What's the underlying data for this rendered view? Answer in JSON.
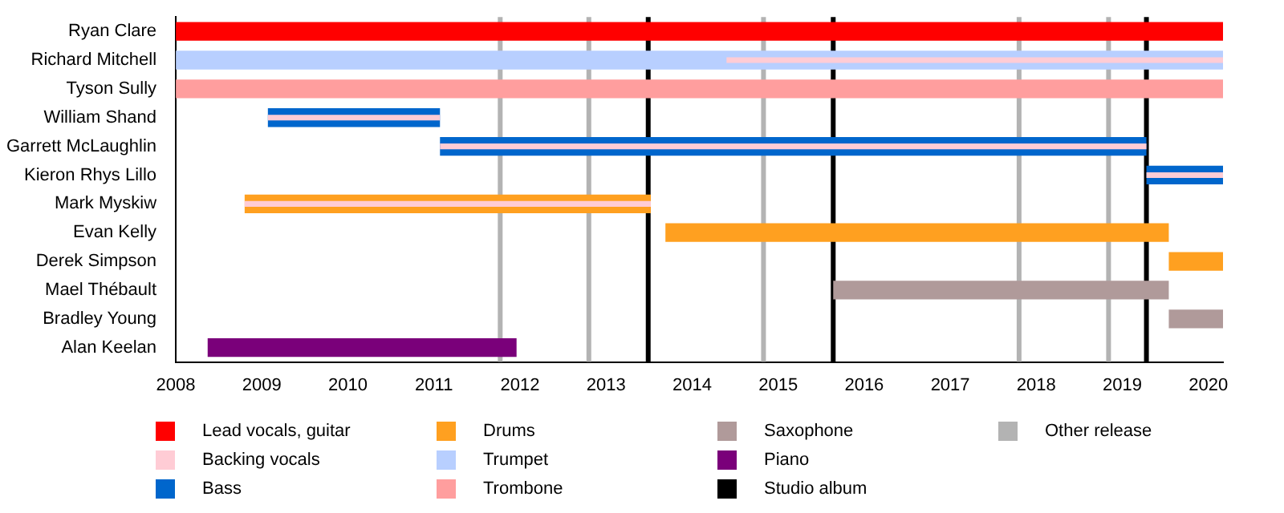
{
  "chart_data": {
    "type": "bar",
    "orientation": "horizontal",
    "categories": [
      "Ryan Clare",
      "Richard Mitchell",
      "Tyson Sully",
      "William Shand",
      "Garrett McLaughlin",
      "Kieron Rhys Lillo",
      "Mark Myskiw",
      "Evan Kelly",
      "Derek Simpson",
      "Mael Thébault",
      "Bradley Young",
      "Alan Keelan"
    ],
    "series": [
      {
        "name": "Lead vocals, guitar",
        "color": "#ff0000",
        "base": [
          2008,
          null,
          null,
          null,
          null,
          null,
          null,
          null,
          null,
          null,
          null,
          null
        ],
        "values": [
          12.17,
          null,
          null,
          null,
          null,
          null,
          null,
          null,
          null,
          null,
          null,
          null
        ]
      },
      {
        "name": "Backing vocals",
        "color": "#ffccd5",
        "base": [
          null,
          2014.4,
          null,
          2009.07,
          2011.07,
          2019.28,
          2008.8,
          null,
          null,
          null,
          null,
          null
        ],
        "values": [
          null,
          5.77,
          null,
          2,
          8.21,
          0.89,
          4.72,
          null,
          null,
          null,
          null,
          null
        ]
      },
      {
        "name": "Bass",
        "color": "#0066cc",
        "base": [
          null,
          null,
          null,
          2009.07,
          2011.07,
          2019.28,
          null,
          null,
          null,
          null,
          null,
          null
        ],
        "values": [
          null,
          null,
          null,
          2,
          8.21,
          0.89,
          null,
          null,
          null,
          null,
          null,
          null
        ]
      },
      {
        "name": "Drums",
        "color": "#ffa020",
        "base": [
          null,
          null,
          null,
          null,
          null,
          null,
          2008.8,
          2013.69,
          2019.54,
          null,
          null,
          null
        ],
        "values": [
          null,
          null,
          null,
          null,
          null,
          null,
          4.72,
          5.85,
          0.63,
          null,
          null,
          null
        ]
      },
      {
        "name": "Trumpet",
        "color": "#b8cfff",
        "base": [
          null,
          2008,
          null,
          null,
          null,
          null,
          null,
          null,
          null,
          null,
          null,
          null
        ],
        "values": [
          null,
          12.17,
          null,
          null,
          null,
          null,
          null,
          null,
          null,
          null,
          null,
          null
        ]
      },
      {
        "name": "Trombone",
        "color": "#ff9e9e",
        "base": [
          null,
          null,
          2008,
          null,
          null,
          null,
          null,
          null,
          null,
          null,
          null,
          null
        ],
        "values": [
          null,
          null,
          12.17,
          null,
          null,
          null,
          null,
          null,
          null,
          null,
          null,
          null
        ]
      },
      {
        "name": "Saxophone",
        "color": "#b09a9a",
        "base": [
          null,
          null,
          null,
          null,
          null,
          null,
          null,
          null,
          null,
          2015.64,
          2019.54,
          null
        ],
        "values": [
          null,
          null,
          null,
          null,
          null,
          null,
          null,
          null,
          null,
          3.9,
          0.63,
          null
        ]
      },
      {
        "name": "Piano",
        "color": "#7a007a",
        "base": [
          null,
          null,
          null,
          null,
          null,
          null,
          null,
          null,
          null,
          null,
          null,
          2008.37
        ],
        "values": [
          null,
          null,
          null,
          null,
          null,
          null,
          null,
          null,
          null,
          null,
          null,
          3.59
        ]
      }
    ],
    "xlim": [
      2008,
      2020.17
    ],
    "xticks": [
      2008,
      2009,
      2010,
      2011,
      2012,
      2013,
      2014,
      2015,
      2016,
      2017,
      2018,
      2019,
      2020
    ],
    "ref_lines": [
      {
        "axis": "x",
        "value": 2013.49,
        "label": "Studio album",
        "color": "#000000"
      },
      {
        "axis": "x",
        "value": 2015.64,
        "color": "#000000"
      },
      {
        "axis": "x",
        "value": 2019.28,
        "color": "#000000"
      },
      {
        "axis": "x",
        "value": 2011.77,
        "label": "Other release",
        "color": "#b3b3b3"
      },
      {
        "axis": "x",
        "value": 2012.8,
        "color": "#b3b3b3"
      },
      {
        "axis": "x",
        "value": 2014.83,
        "color": "#b3b3b3"
      },
      {
        "axis": "x",
        "value": 2017.8,
        "color": "#b3b3b3"
      },
      {
        "axis": "x",
        "value": 2018.84,
        "color": "#b3b3b3"
      }
    ],
    "grid": false,
    "legend": "bottom"
  }
}
